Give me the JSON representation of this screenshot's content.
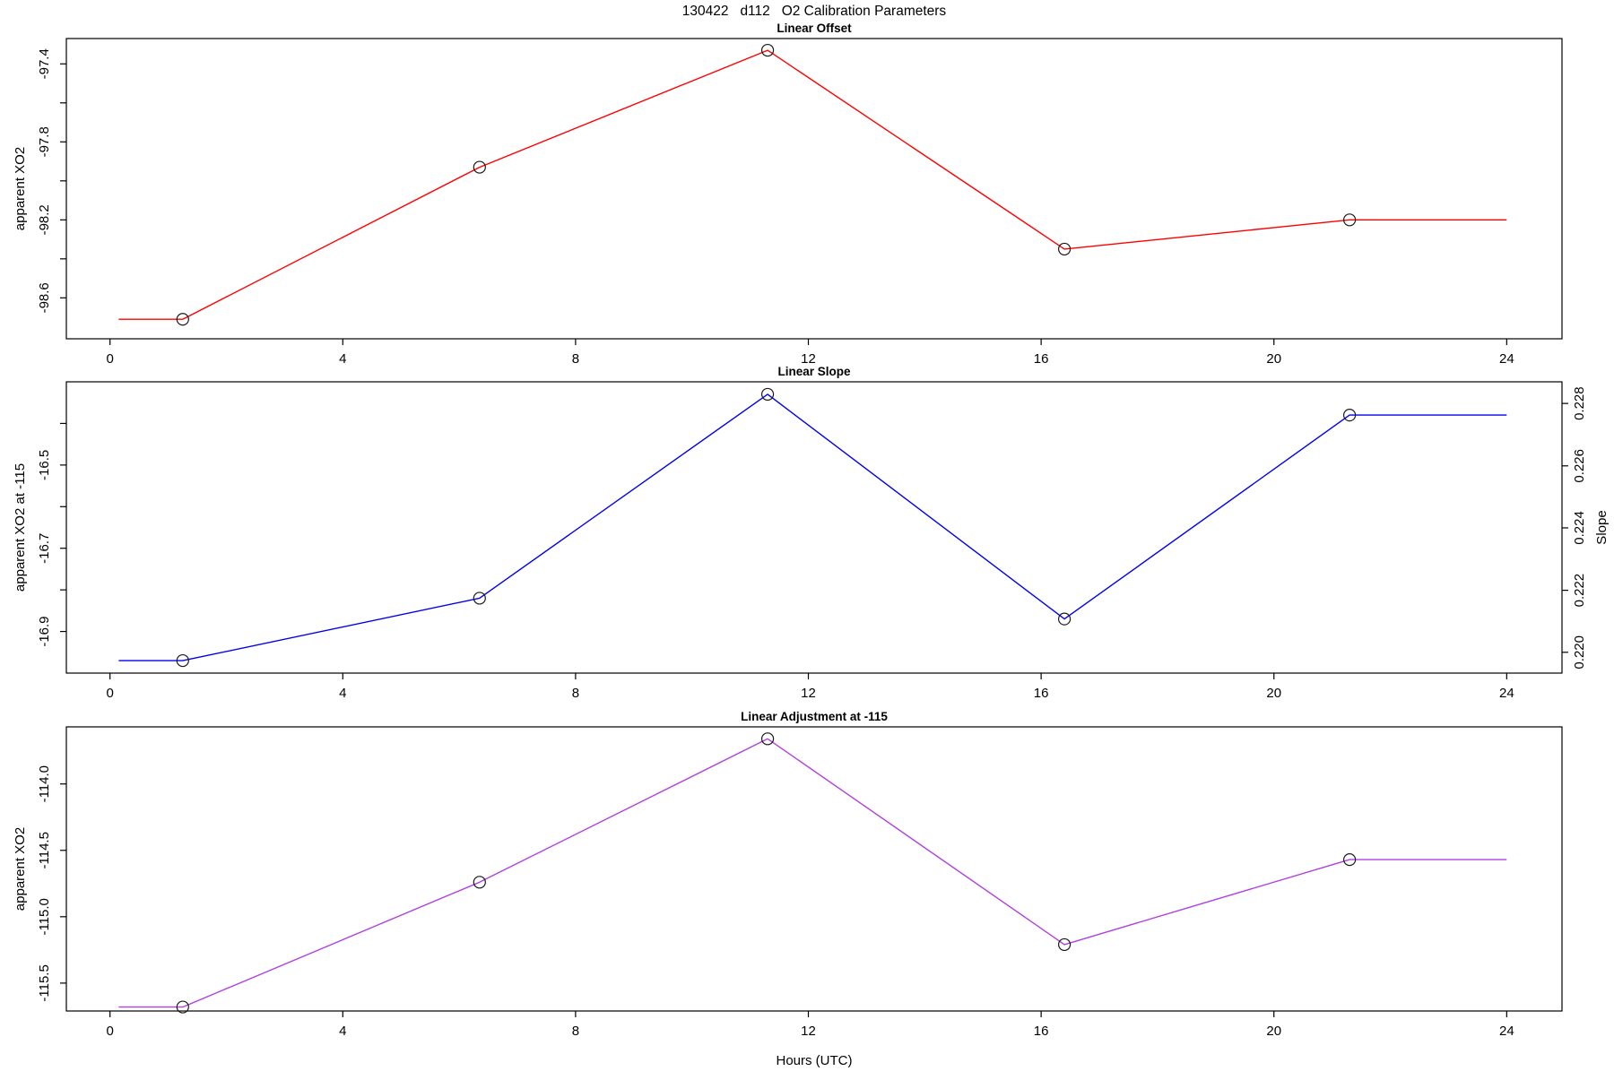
{
  "page_title": "130422   d112   O2 Calibration Parameters",
  "x_axis": {
    "label": "Hours (UTC)",
    "tick_values": [
      0,
      4,
      8,
      12,
      16,
      20,
      24
    ],
    "tick_labels": [
      "0",
      "4",
      "8",
      "12",
      "16",
      "20",
      "24"
    ],
    "lim": [
      -0.75,
      24.95
    ],
    "points_t": [
      1.25,
      6.35,
      11.3,
      16.4,
      21.3
    ],
    "line_start_t": 0.15,
    "line_end_t": 24
  },
  "chart_data": [
    {
      "type": "line",
      "title": "Linear Offset",
      "ylabel": "apparent XO2",
      "color": "#ff0000",
      "x": [
        1.25,
        6.35,
        11.3,
        16.4,
        21.3
      ],
      "values": [
        -98.71,
        -97.93,
        -97.33,
        -98.35,
        -98.2
      ],
      "ylim": [
        -98.81,
        -97.27
      ],
      "yticks": [
        {
          "v": -98.6,
          "label": "-98.6"
        },
        {
          "v": -98.4,
          "label": ""
        },
        {
          "v": -98.2,
          "label": "-98.2"
        },
        {
          "v": -98.0,
          "label": ""
        },
        {
          "v": -97.8,
          "label": "-97.8"
        },
        {
          "v": -97.6,
          "label": ""
        },
        {
          "v": -97.4,
          "label": "-97.4"
        }
      ]
    },
    {
      "type": "line",
      "title": "Linear Slope",
      "ylabel": "apparent XO2 at -115",
      "ylabel_right": "Slope",
      "color": "#0000ee",
      "x": [
        1.25,
        6.35,
        11.3,
        16.4,
        21.3
      ],
      "values": [
        -16.97,
        -16.82,
        -16.33,
        -16.87,
        -16.38
      ],
      "slope_values": [
        0.2197,
        0.2218,
        0.2283,
        0.221,
        0.2276
      ],
      "ylim": [
        -17.0,
        -16.3
      ],
      "yticks": [
        {
          "v": -16.9,
          "label": "-16.9"
        },
        {
          "v": -16.8,
          "label": ""
        },
        {
          "v": -16.7,
          "label": "-16.7"
        },
        {
          "v": -16.6,
          "label": ""
        },
        {
          "v": -16.5,
          "label": "-16.5"
        },
        {
          "v": -16.4,
          "label": ""
        }
      ],
      "yticks_right": [
        {
          "v": -16.95,
          "label": "0.220"
        },
        {
          "v": -16.801,
          "label": "0.222"
        },
        {
          "v": -16.651,
          "label": "0.224"
        },
        {
          "v": -16.502,
          "label": "0.226"
        },
        {
          "v": -16.352,
          "label": "0.228"
        }
      ]
    },
    {
      "type": "line",
      "title": "Linear Adjustment at -115",
      "ylabel": "apparent XO2",
      "color": "#b040e0",
      "x": [
        1.25,
        6.35,
        11.3,
        16.4,
        21.3
      ],
      "values": [
        -115.68,
        -114.74,
        -113.66,
        -115.21,
        -114.57
      ],
      "ylim": [
        -115.71,
        -113.57
      ],
      "yticks": [
        {
          "v": -115.5,
          "label": "-115.5"
        },
        {
          "v": -115.0,
          "label": "-115.0"
        },
        {
          "v": -114.5,
          "label": "-114.5"
        },
        {
          "v": -114.0,
          "label": "-114.0"
        }
      ]
    }
  ]
}
